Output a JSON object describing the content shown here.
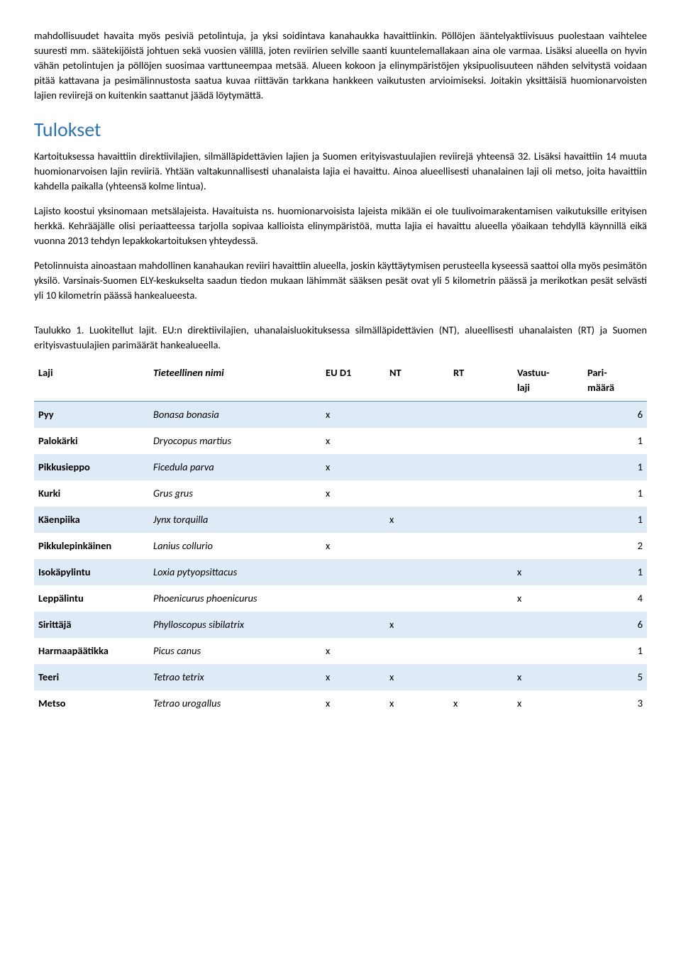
{
  "para1": "mahdollisuudet havaita myös pesiviä petolintuja, ja yksi soidintava kanahaukka havaittiinkin. Pöllöjen ääntelyaktiivisuus puolestaan vaihtelee suuresti mm. säätekijöistä johtuen sekä vuosien välillä, joten reviirien selville saanti kuuntelemallakaan aina ole varmaa. Lisäksi alueella on hyvin vähän petolintujen ja pöllöjen suosimaa varttuneempaa metsää. Alueen kokoon ja elinympäristöjen yksipuolisuuteen nähden selvitystä voidaan pitää kattavana ja pesimälinnustosta saatua kuvaa riittävän tarkkana hankkeen vaikutusten arvioimiseksi. Joitakin yksittäisiä huomionarvoisten lajien reviirejä on kuitenkin saattanut jäädä löytymättä.",
  "heading": "Tulokset",
  "para2": "Kartoituksessa havaittiin direktiivilajien, silmälläpidettävien lajien ja Suomen erityisvastuulajien reviirejä yhteensä 32. Lisäksi havaittiin 14 muuta huomionarvoisen lajin reviiriä. Yhtään valtakunnallisesti uhanalaista lajia ei havaittu. Ainoa alueellisesti uhanalainen laji oli metso, joita havaittiin kahdella paikalla (yhteensä kolme lintua).",
  "para3": "Lajisto koostui yksinomaan metsälajeista. Havaituista ns. huomionarvoisista lajeista mikään ei ole tuulivoimarakentamisen vaikutuksille erityisen herkkä. Kehrääjälle olisi periaatteessa tarjolla sopivaa kallioista elinympäristöä, mutta lajia ei havaittu alueella yöaikaan tehdyllä käynnillä eikä vuonna 2013 tehdyn lepakkokartoituksen yhteydessä.",
  "para4": "Petolinnuista ainoastaan mahdollinen kanahaukan reviiri havaittiin alueella, joskin käyttäytymisen perusteella kyseessä saattoi olla myös pesimätön yksilö. Varsinais-Suomen ELY-keskukselta saadun tiedon mukaan lähimmät sääksen pesät ovat yli 5 kilometrin päässä ja merikotkan pesät selvästi yli 10 kilometrin päässä hankealueesta.",
  "caption": "Taulukko 1. Luokitellut lajit. EU:n direktiivilajien, uhanalaisluokituksessa silmälläpidettävien (NT), alueellisesti uhanalaisten (RT) ja Suomen erityisvastuulajien parimäärät hankealueella.",
  "headers": {
    "laji": "Laji",
    "sci": "Tieteellinen nimi",
    "eu": "EU D1",
    "nt": "NT",
    "rt": "RT",
    "vastuu": "Vastuu-laji",
    "pari": "Pari-määrä"
  },
  "rows": [
    {
      "laji": "Pyy",
      "sci": "Bonasa bonasia",
      "eu": "x",
      "nt": "",
      "rt": "",
      "vastuu": "",
      "pari": "6"
    },
    {
      "laji": "Palokärki",
      "sci": "Dryocopus martius",
      "eu": "x",
      "nt": "",
      "rt": "",
      "vastuu": "",
      "pari": "1"
    },
    {
      "laji": "Pikkusieppo",
      "sci": "Ficedula parva",
      "eu": "x",
      "nt": "",
      "rt": "",
      "vastuu": "",
      "pari": "1"
    },
    {
      "laji": "Kurki",
      "sci": "Grus grus",
      "eu": "x",
      "nt": "",
      "rt": "",
      "vastuu": "",
      "pari": "1"
    },
    {
      "laji": "Käenpiika",
      "sci": "Jynx torquilla",
      "eu": "",
      "nt": "x",
      "rt": "",
      "vastuu": "",
      "pari": "1"
    },
    {
      "laji": "Pikkulepinkäinen",
      "sci": "Lanius collurio",
      "eu": "x",
      "nt": "",
      "rt": "",
      "vastuu": "",
      "pari": "2"
    },
    {
      "laji": "Isokäpylintu",
      "sci": "Loxia pytyopsittacus",
      "eu": "",
      "nt": "",
      "rt": "",
      "vastuu": "x",
      "pari": "1"
    },
    {
      "laji": "Leppälintu",
      "sci": "Phoenicurus phoenicurus",
      "eu": "",
      "nt": "",
      "rt": "",
      "vastuu": "x",
      "pari": "4"
    },
    {
      "laji": "Sirittäjä",
      "sci": "Phylloscopus sibilatrix",
      "eu": "",
      "nt": "x",
      "rt": "",
      "vastuu": "",
      "pari": "6"
    },
    {
      "laji": "Harmaapäätikka",
      "sci": "Picus canus",
      "eu": "x",
      "nt": "",
      "rt": "",
      "vastuu": "",
      "pari": "1"
    },
    {
      "laji": "Teeri",
      "sci": "Tetrao tetrix",
      "eu": "x",
      "nt": "x",
      "rt": "",
      "vastuu": "x",
      "pari": "5"
    },
    {
      "laji": "Metso",
      "sci": "Tetrao urogallus",
      "eu": "x",
      "nt": "x",
      "rt": "x",
      "vastuu": "x",
      "pari": "3"
    }
  ]
}
